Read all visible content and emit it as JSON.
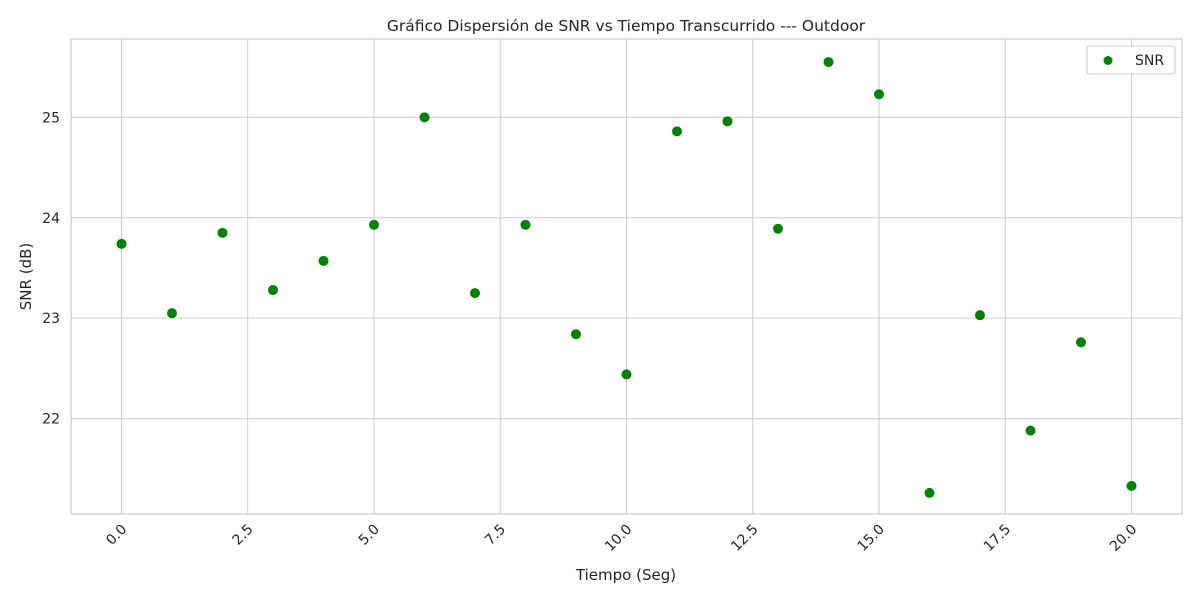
{
  "chart_data": {
    "type": "scatter",
    "title": "Gráfico Dispersión de SNR vs Tiempo Transcurrido --- Outdoor",
    "xlabel": "Tiempo (Seg)",
    "ylabel": "SNR (dB)",
    "xlim": [
      -1.0,
      21.0
    ],
    "ylim": [
      21.05,
      25.78
    ],
    "xticks": [
      0.0,
      2.5,
      5.0,
      7.5,
      10.0,
      12.5,
      15.0,
      17.5,
      20.0
    ],
    "xtick_labels": [
      "0.0",
      "2.5",
      "5.0",
      "7.5",
      "10.0",
      "12.5",
      "15.0",
      "17.5",
      "20.0"
    ],
    "xtick_rotation": 45,
    "yticks": [
      22,
      23,
      24,
      25
    ],
    "ytick_labels": [
      "22",
      "23",
      "24",
      "25"
    ],
    "grid": true,
    "legend_position": "top-right",
    "series": [
      {
        "name": "SNR",
        "color": "#008000",
        "x": [
          0,
          1,
          2,
          3,
          4,
          5,
          6,
          7,
          8,
          9,
          10,
          11,
          12,
          13,
          14,
          15,
          16,
          17,
          18,
          19,
          20
        ],
        "y": [
          23.74,
          23.05,
          23.85,
          23.28,
          23.57,
          23.93,
          25.0,
          23.25,
          23.93,
          22.84,
          22.44,
          24.86,
          24.96,
          23.89,
          25.55,
          25.23,
          21.26,
          23.03,
          21.88,
          22.76,
          21.33
        ]
      }
    ]
  }
}
